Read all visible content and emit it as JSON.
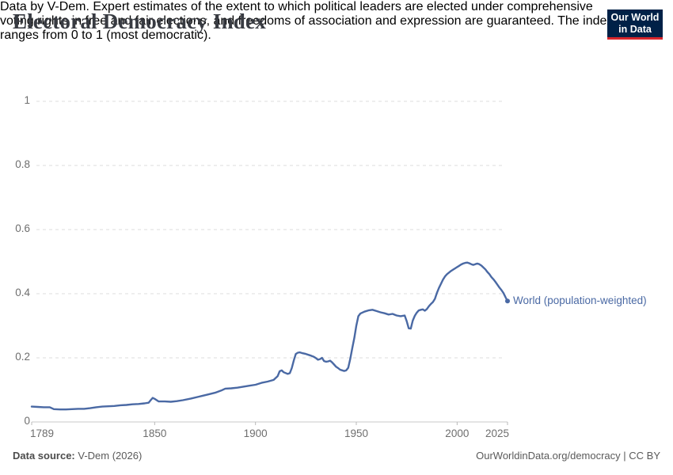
{
  "header": {
    "title": "Electoral Democracy Index",
    "subtitle_lines": [
      "Data by V-Dem. Expert estimates of the extent to which political leaders are elected under comprehensive",
      "voting rights in free and fair elections, and freedoms of association and expression are guaranteed. The index",
      "ranges from 0 to 1 (most democratic)."
    ]
  },
  "logo": {
    "line1": "Our World",
    "line2": "in Data",
    "bg_color": "#002147",
    "accent_color": "#d8262c"
  },
  "footer": {
    "source_label": "Data source:",
    "source_value": " V-Dem (2026)",
    "credit": "OurWorldinData.org/democracy | CC BY"
  },
  "chart_data": {
    "type": "line",
    "title": "Electoral Democracy Index",
    "xlabel": "",
    "ylabel": "",
    "x_range": [
      1789,
      2025
    ],
    "y_range": [
      0,
      1
    ],
    "grid": "horizontal-dashed",
    "legend_position": "end-of-line-label",
    "y_ticks": [
      {
        "value": 0,
        "label": "0"
      },
      {
        "value": 0.2,
        "label": "0.2"
      },
      {
        "value": 0.4,
        "label": "0.4"
      },
      {
        "value": 0.6,
        "label": "0.6"
      },
      {
        "value": 0.8,
        "label": "0.8"
      },
      {
        "value": 1,
        "label": "1"
      }
    ],
    "x_ticks": [
      {
        "year": 1789,
        "label": "1789"
      },
      {
        "year": 1850,
        "label": "1850"
      },
      {
        "year": 1900,
        "label": "1900"
      },
      {
        "year": 1950,
        "label": "1950"
      },
      {
        "year": 2000,
        "label": "2000"
      },
      {
        "year": 2025,
        "label": "2025"
      }
    ],
    "series": [
      {
        "name": "World (population-weighted)",
        "color": "#4a69a4",
        "points": [
          [
            1789,
            0.048
          ],
          [
            1792,
            0.047
          ],
          [
            1795,
            0.046
          ],
          [
            1798,
            0.046
          ],
          [
            1800,
            0.04
          ],
          [
            1803,
            0.039
          ],
          [
            1806,
            0.039
          ],
          [
            1809,
            0.04
          ],
          [
            1812,
            0.041
          ],
          [
            1815,
            0.041
          ],
          [
            1818,
            0.043
          ],
          [
            1821,
            0.046
          ],
          [
            1824,
            0.048
          ],
          [
            1827,
            0.049
          ],
          [
            1830,
            0.05
          ],
          [
            1833,
            0.052
          ],
          [
            1836,
            0.053
          ],
          [
            1839,
            0.055
          ],
          [
            1842,
            0.056
          ],
          [
            1845,
            0.058
          ],
          [
            1847,
            0.06
          ],
          [
            1848,
            0.068
          ],
          [
            1849,
            0.075
          ],
          [
            1850,
            0.072
          ],
          [
            1852,
            0.064
          ],
          [
            1855,
            0.064
          ],
          [
            1858,
            0.063
          ],
          [
            1861,
            0.065
          ],
          [
            1864,
            0.068
          ],
          [
            1868,
            0.073
          ],
          [
            1872,
            0.079
          ],
          [
            1876,
            0.085
          ],
          [
            1880,
            0.091
          ],
          [
            1883,
            0.098
          ],
          [
            1885,
            0.104
          ],
          [
            1888,
            0.105
          ],
          [
            1891,
            0.107
          ],
          [
            1894,
            0.11
          ],
          [
            1897,
            0.113
          ],
          [
            1900,
            0.116
          ],
          [
            1903,
            0.122
          ],
          [
            1906,
            0.126
          ],
          [
            1909,
            0.131
          ],
          [
            1911,
            0.143
          ],
          [
            1912,
            0.158
          ],
          [
            1913,
            0.161
          ],
          [
            1914,
            0.155
          ],
          [
            1916,
            0.15
          ],
          [
            1917,
            0.152
          ],
          [
            1918,
            0.168
          ],
          [
            1919,
            0.192
          ],
          [
            1920,
            0.212
          ],
          [
            1921,
            0.216
          ],
          [
            1922,
            0.217
          ],
          [
            1923,
            0.215
          ],
          [
            1925,
            0.212
          ],
          [
            1927,
            0.208
          ],
          [
            1929,
            0.203
          ],
          [
            1930,
            0.199
          ],
          [
            1931,
            0.194
          ],
          [
            1932,
            0.196
          ],
          [
            1933,
            0.2
          ],
          [
            1934,
            0.19
          ],
          [
            1935,
            0.188
          ],
          [
            1936,
            0.189
          ],
          [
            1937,
            0.191
          ],
          [
            1938,
            0.186
          ],
          [
            1939,
            0.179
          ],
          [
            1940,
            0.172
          ],
          [
            1941,
            0.168
          ],
          [
            1942,
            0.163
          ],
          [
            1943,
            0.161
          ],
          [
            1944,
            0.159
          ],
          [
            1945,
            0.161
          ],
          [
            1946,
            0.169
          ],
          [
            1947,
            0.197
          ],
          [
            1948,
            0.23
          ],
          [
            1949,
            0.262
          ],
          [
            1950,
            0.3
          ],
          [
            1951,
            0.33
          ],
          [
            1952,
            0.338
          ],
          [
            1954,
            0.344
          ],
          [
            1956,
            0.348
          ],
          [
            1958,
            0.35
          ],
          [
            1960,
            0.346
          ],
          [
            1962,
            0.342
          ],
          [
            1964,
            0.339
          ],
          [
            1966,
            0.335
          ],
          [
            1968,
            0.337
          ],
          [
            1970,
            0.332
          ],
          [
            1972,
            0.33
          ],
          [
            1974,
            0.332
          ],
          [
            1975,
            0.314
          ],
          [
            1976,
            0.292
          ],
          [
            1977,
            0.291
          ],
          [
            1978,
            0.316
          ],
          [
            1979,
            0.331
          ],
          [
            1980,
            0.341
          ],
          [
            1981,
            0.348
          ],
          [
            1982,
            0.35
          ],
          [
            1983,
            0.351
          ],
          [
            1984,
            0.347
          ],
          [
            1985,
            0.352
          ],
          [
            1986,
            0.361
          ],
          [
            1987,
            0.368
          ],
          [
            1988,
            0.374
          ],
          [
            1989,
            0.384
          ],
          [
            1990,
            0.403
          ],
          [
            1991,
            0.418
          ],
          [
            1992,
            0.431
          ],
          [
            1993,
            0.444
          ],
          [
            1994,
            0.454
          ],
          [
            1995,
            0.461
          ],
          [
            1996,
            0.466
          ],
          [
            1997,
            0.471
          ],
          [
            1998,
            0.475
          ],
          [
            1999,
            0.479
          ],
          [
            2000,
            0.483
          ],
          [
            2001,
            0.487
          ],
          [
            2002,
            0.491
          ],
          [
            2003,
            0.494
          ],
          [
            2004,
            0.496
          ],
          [
            2005,
            0.497
          ],
          [
            2006,
            0.495
          ],
          [
            2007,
            0.492
          ],
          [
            2008,
            0.49
          ],
          [
            2009,
            0.492
          ],
          [
            2010,
            0.494
          ],
          [
            2011,
            0.492
          ],
          [
            2012,
            0.488
          ],
          [
            2013,
            0.482
          ],
          [
            2014,
            0.476
          ],
          [
            2015,
            0.468
          ],
          [
            2016,
            0.461
          ],
          [
            2017,
            0.452
          ],
          [
            2018,
            0.445
          ],
          [
            2019,
            0.437
          ],
          [
            2020,
            0.428
          ],
          [
            2021,
            0.419
          ],
          [
            2022,
            0.411
          ],
          [
            2023,
            0.402
          ],
          [
            2024,
            0.389
          ],
          [
            2025,
            0.377
          ]
        ]
      }
    ]
  }
}
